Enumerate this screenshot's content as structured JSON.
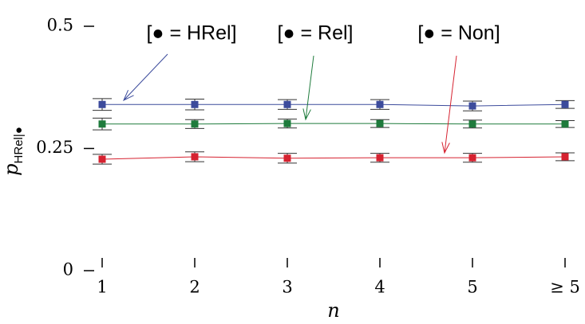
{
  "chart_data": {
    "type": "line",
    "x_label": "n",
    "y_label": "p",
    "y_label_sub": "HRel|●",
    "categories": [
      "1",
      "2",
      "3",
      "4",
      "5",
      "≥ 5"
    ],
    "ylim": [
      0,
      0.5
    ],
    "yticks": [
      0,
      0.25,
      0.5
    ],
    "series": [
      {
        "name": "[● = HRel]",
        "color": "#3c4b9c",
        "values": [
          0.34,
          0.34,
          0.34,
          0.34,
          0.337,
          0.34
        ],
        "errors": [
          0.012,
          0.011,
          0.01,
          0.01,
          0.01,
          0.008
        ]
      },
      {
        "name": "[● = Rel]",
        "color": "#1e7b3c",
        "values": [
          0.3,
          0.3,
          0.301,
          0.301,
          0.3,
          0.3
        ],
        "errors": [
          0.012,
          0.009,
          0.009,
          0.008,
          0.008,
          0.007
        ]
      },
      {
        "name": "[● = Non]",
        "color": "#d62230",
        "values": [
          0.228,
          0.233,
          0.23,
          0.231,
          0.231,
          0.233
        ],
        "errors": [
          0.01,
          0.01,
          0.01,
          0.009,
          0.009,
          0.008
        ]
      }
    ]
  }
}
